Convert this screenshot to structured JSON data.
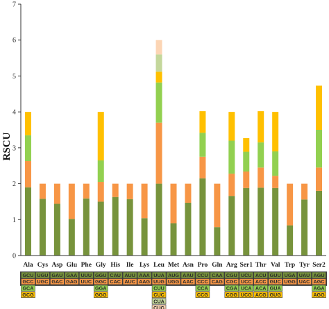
{
  "chart_data": {
    "type": "bar",
    "stacked": true,
    "ylabel": "RSCU",
    "ylim": [
      0,
      7
    ],
    "yticks": [
      0,
      1,
      2,
      3,
      4,
      5,
      6,
      7
    ],
    "grid": false,
    "legend": "codon table below x-axis",
    "layer_colors": [
      "#77933c",
      "#f79646",
      "#92d050",
      "#ffc000",
      "#c4d79b",
      "#fcd5b4"
    ],
    "categories": [
      "Ala",
      "Cys",
      "Asp",
      "Glu",
      "Phe",
      "Gly",
      "His",
      "Ile",
      "Lys",
      "Leu",
      "Met",
      "Asn",
      "Pro",
      "Gln",
      "Arg",
      "Ser1",
      "Thr",
      "Val",
      "Trp",
      "Tyr",
      "Ser2"
    ],
    "segments": [
      [
        1.9,
        0.73,
        0.72,
        0.65
      ],
      [
        1.58,
        0.42
      ],
      [
        1.44,
        0.56
      ],
      [
        1.02,
        0.98
      ],
      [
        1.59,
        0.41
      ],
      [
        1.5,
        0.55,
        0.6,
        1.35
      ],
      [
        1.63,
        0.37
      ],
      [
        1.57,
        0.43
      ],
      [
        1.04,
        0.96
      ],
      [
        2.0,
        1.7,
        1.12,
        0.3,
        0.48,
        0.4
      ],
      [
        0.9,
        1.1
      ],
      [
        1.47,
        0.53
      ],
      [
        2.15,
        0.6,
        0.67,
        0.6
      ],
      [
        0.79,
        1.21
      ],
      [
        1.66,
        0.62,
        0.92,
        0.8
      ],
      [
        1.88,
        0.46,
        0.55,
        0.38
      ],
      [
        1.89,
        0.56,
        0.7,
        0.87
      ],
      [
        1.88,
        0.34,
        0.68,
        1.1
      ],
      [
        0.84,
        1.16
      ],
      [
        1.56,
        0.44
      ],
      [
        1.8,
        0.65,
        1.05,
        1.23
      ]
    ],
    "codons": [
      [
        "GCU",
        "GCC",
        "GCA",
        "GCG"
      ],
      [
        "UGU",
        "UGC"
      ],
      [
        "GAU",
        "GAC"
      ],
      [
        "GAA",
        "GAG"
      ],
      [
        "UUU",
        "UUC"
      ],
      [
        "GGU",
        "GGC",
        "GGA",
        "GGG"
      ],
      [
        "CAU",
        "CAC"
      ],
      [
        "AUU",
        "AUC"
      ],
      [
        "AAA",
        "AAG"
      ],
      [
        "UUA",
        "UUG",
        "CUU",
        "CUC",
        "CUA",
        "CUG"
      ],
      [
        "AUG",
        "UGG"
      ],
      [
        "AAU",
        "AAC"
      ],
      [
        "CCU",
        "CCC",
        "CCA",
        "CCG"
      ],
      [
        "CAA",
        "CAG"
      ],
      [
        "CGU",
        "CGC",
        "CGA",
        "CGG"
      ],
      [
        "UCU",
        "UCC",
        "UCA",
        "UCG"
      ],
      [
        "ACU",
        "ACC",
        "ACA",
        "ACG"
      ],
      [
        "GUU",
        "GUC",
        "GUA",
        "GUG"
      ],
      [
        "UGA",
        "UGG"
      ],
      [
        "UAU",
        "UAC"
      ],
      [
        "AGU",
        "AGC",
        "AGA",
        "AGG"
      ]
    ]
  }
}
